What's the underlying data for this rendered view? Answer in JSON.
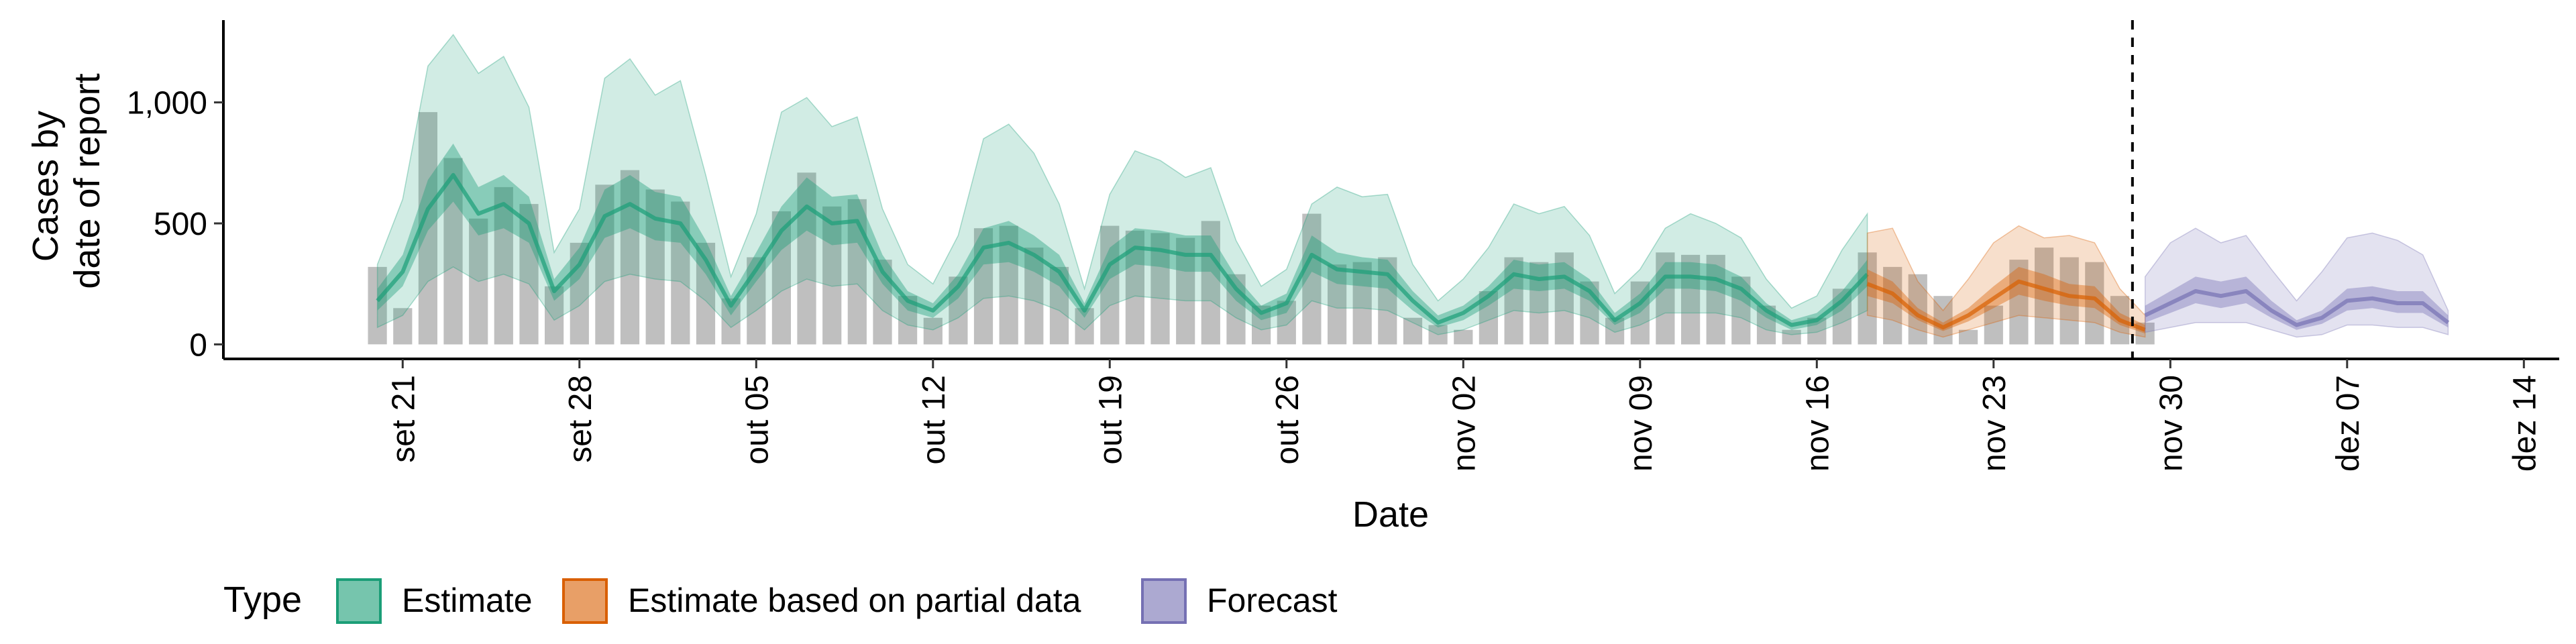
{
  "chart_data": {
    "type": "bar",
    "xlabel": "Date",
    "ylabel_lines": [
      "Cases by",
      "date of report"
    ],
    "ylim": [
      -60,
      1340
    ],
    "yticks": [
      0,
      500,
      1000
    ],
    "ytick_labels": [
      "0",
      "500",
      "1,000"
    ],
    "x_start": "2020-09-20",
    "xlim_days": [
      -6.1,
      86.4
    ],
    "xticks": [
      {
        "day": 1,
        "label": "set 21"
      },
      {
        "day": 8,
        "label": "set 28"
      },
      {
        "day": 15,
        "label": "out 05"
      },
      {
        "day": 22,
        "label": "out 12"
      },
      {
        "day": 29,
        "label": "out 19"
      },
      {
        "day": 36,
        "label": "out 26"
      },
      {
        "day": 43,
        "label": "nov 02"
      },
      {
        "day": 50,
        "label": "nov 09"
      },
      {
        "day": 57,
        "label": "nov 16"
      },
      {
        "day": 64,
        "label": "nov 23"
      },
      {
        "day": 71,
        "label": "nov 30"
      },
      {
        "day": 78,
        "label": "dez 07"
      },
      {
        "day": 85,
        "label": "dez 14"
      }
    ],
    "forecast_start_day": 70,
    "reported_cases": [
      320,
      150,
      960,
      770,
      520,
      650,
      580,
      240,
      420,
      660,
      720,
      640,
      590,
      420,
      190,
      360,
      550,
      710,
      570,
      600,
      350,
      200,
      110,
      280,
      480,
      490,
      400,
      320,
      150,
      490,
      470,
      460,
      440,
      510,
      290,
      160,
      180,
      540,
      330,
      340,
      360,
      110,
      80,
      60,
      220,
      360,
      340,
      380,
      260,
      110,
      260,
      380,
      370,
      370,
      280,
      160,
      60,
      110,
      230,
      380,
      320,
      290,
      200,
      60,
      160,
      350,
      400,
      360,
      340,
      200,
      90
    ],
    "legend_title": "Type",
    "series": [
      {
        "name": "Estimate",
        "color": "#1b9e77",
        "start_day": 0,
        "median": [
          180,
          300,
          560,
          700,
          540,
          580,
          500,
          220,
          330,
          530,
          580,
          520,
          500,
          350,
          160,
          310,
          470,
          570,
          500,
          510,
          300,
          180,
          140,
          240,
          400,
          420,
          370,
          300,
          140,
          330,
          400,
          390,
          370,
          370,
          230,
          130,
          170,
          370,
          310,
          300,
          290,
          180,
          90,
          130,
          200,
          290,
          270,
          280,
          220,
          100,
          170,
          280,
          280,
          270,
          230,
          140,
          80,
          100,
          180,
          290
        ],
        "q25": [
          140,
          240,
          470,
          590,
          450,
          480,
          420,
          180,
          270,
          440,
          480,
          430,
          420,
          290,
          120,
          260,
          390,
          470,
          410,
          420,
          250,
          140,
          110,
          190,
          330,
          340,
          300,
          240,
          110,
          270,
          330,
          320,
          300,
          300,
          180,
          100,
          130,
          300,
          250,
          240,
          230,
          140,
          70,
          100,
          160,
          230,
          220,
          230,
          180,
          80,
          130,
          230,
          230,
          220,
          180,
          110,
          60,
          80,
          140,
          240
        ],
        "q75": [
          230,
          370,
          680,
          830,
          650,
          700,
          610,
          270,
          400,
          640,
          700,
          630,
          610,
          430,
          200,
          380,
          570,
          690,
          610,
          620,
          370,
          220,
          170,
          290,
          480,
          510,
          450,
          370,
          170,
          400,
          480,
          470,
          450,
          450,
          280,
          160,
          210,
          450,
          380,
          360,
          350,
          220,
          120,
          160,
          240,
          350,
          330,
          340,
          270,
          130,
          210,
          340,
          340,
          330,
          280,
          170,
          100,
          130,
          220,
          350
        ],
        "q5": [
          70,
          120,
          260,
          320,
          260,
          290,
          250,
          100,
          160,
          260,
          290,
          270,
          260,
          180,
          70,
          140,
          220,
          270,
          240,
          250,
          140,
          80,
          60,
          110,
          190,
          200,
          180,
          140,
          60,
          160,
          200,
          190,
          180,
          180,
          110,
          60,
          80,
          180,
          150,
          150,
          140,
          90,
          40,
          60,
          100,
          140,
          130,
          140,
          110,
          50,
          80,
          130,
          130,
          130,
          110,
          60,
          40,
          50,
          90,
          140
        ],
        "q95": [
          330,
          600,
          1150,
          1280,
          1120,
          1190,
          980,
          380,
          560,
          1100,
          1180,
          1030,
          1090,
          700,
          280,
          540,
          960,
          1020,
          900,
          940,
          560,
          330,
          250,
          450,
          850,
          910,
          790,
          580,
          230,
          620,
          800,
          760,
          690,
          730,
          430,
          240,
          310,
          580,
          650,
          610,
          620,
          330,
          180,
          270,
          400,
          580,
          540,
          570,
          450,
          210,
          310,
          480,
          540,
          500,
          440,
          270,
          150,
          200,
          390,
          540
        ]
      },
      {
        "name": "Estimate based on partial data",
        "color": "#d95f02",
        "start_day": 59,
        "median": [
          250,
          210,
          120,
          70,
          120,
          190,
          260,
          230,
          200,
          190,
          100,
          60
        ],
        "q25": [
          200,
          170,
          100,
          55,
          95,
          150,
          205,
          180,
          160,
          150,
          80,
          45
        ],
        "q75": [
          310,
          260,
          150,
          90,
          150,
          240,
          320,
          290,
          250,
          240,
          130,
          80
        ],
        "q5": [
          120,
          100,
          60,
          30,
          60,
          90,
          120,
          110,
          100,
          90,
          50,
          30
        ],
        "q95": [
          460,
          480,
          260,
          140,
          270,
          420,
          490,
          440,
          450,
          420,
          230,
          120
        ]
      },
      {
        "name": "Forecast",
        "color": "#7570b3",
        "start_day": 70,
        "median": [
          120,
          170,
          220,
          200,
          220,
          140,
          80,
          110,
          180,
          190,
          170,
          170,
          90
        ],
        "q25": [
          90,
          130,
          170,
          150,
          170,
          110,
          60,
          85,
          140,
          150,
          130,
          130,
          70
        ],
        "q75": [
          160,
          220,
          280,
          260,
          280,
          180,
          100,
          140,
          230,
          240,
          220,
          220,
          120
        ],
        "q5": [
          50,
          70,
          90,
          90,
          90,
          60,
          30,
          40,
          80,
          80,
          70,
          70,
          40
        ],
        "q95": [
          280,
          420,
          480,
          420,
          450,
          310,
          180,
          300,
          440,
          460,
          430,
          370,
          140
        ]
      }
    ]
  }
}
